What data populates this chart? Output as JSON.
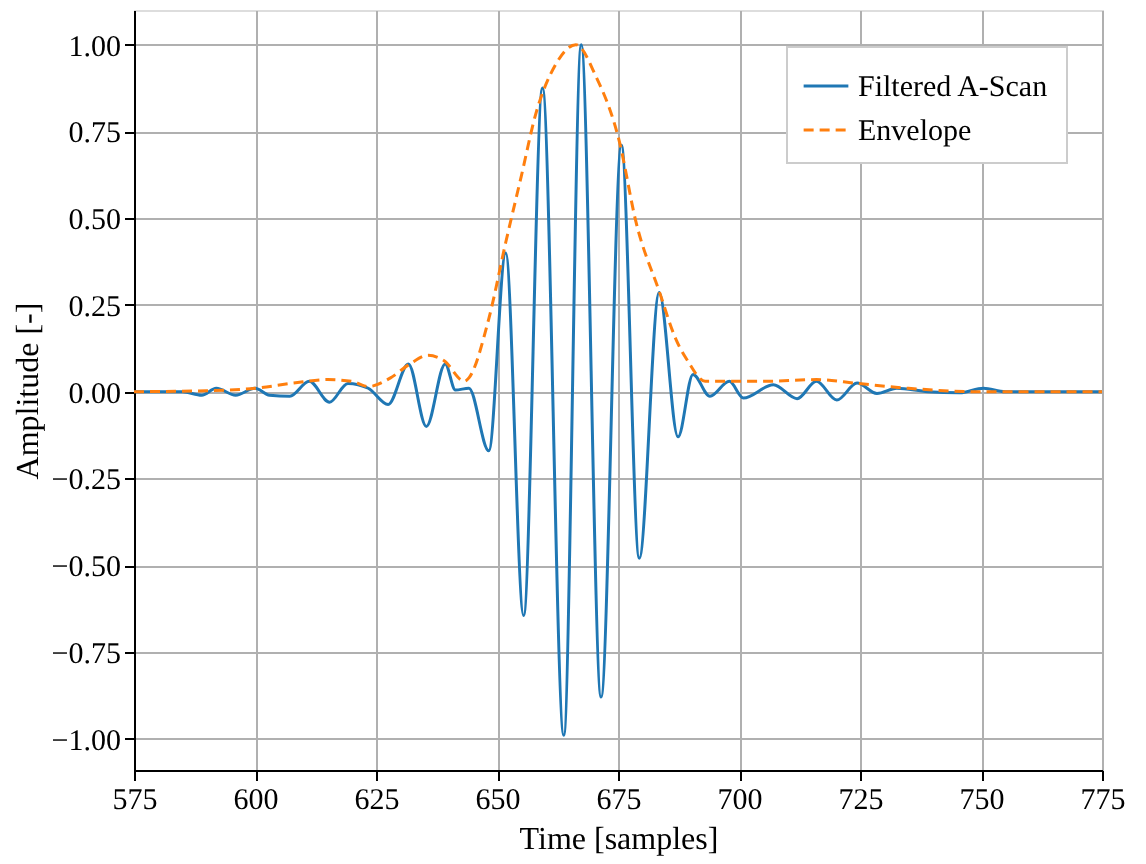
{
  "chart_data": {
    "type": "line",
    "xlabel": "Time [samples]",
    "ylabel": "Amplitude [-]",
    "xlim": [
      575,
      775
    ],
    "xticks": [
      575,
      600,
      625,
      650,
      675,
      700,
      725,
      750,
      775
    ],
    "ylim": [
      -1.09,
      1.1
    ],
    "yticks": [
      {
        "value": -1,
        "label": "−1.00"
      },
      {
        "value": -0.75,
        "label": "−0.75"
      },
      {
        "value": -0.5,
        "label": "−0.50"
      },
      {
        "value": -0.25,
        "label": "−0.25"
      },
      {
        "value": 0,
        "label": "0.00"
      },
      {
        "value": 0.25,
        "label": "0.25"
      },
      {
        "value": 0.5,
        "label": "0.50"
      },
      {
        "value": 0.75,
        "label": "0.75"
      },
      {
        "value": 1,
        "label": "1.00"
      }
    ],
    "grid": true,
    "legend": "top right",
    "series": [
      {
        "name": "Filtered A-Scan",
        "color": "#1f77b4",
        "line_style": "solid",
        "x": [
          575,
          585,
          589,
          592,
          596,
          600,
          603,
          607.2,
          611.2,
          615.4,
          619.2,
          623.4,
          627.5,
          631.7,
          635.4,
          639.3,
          641.4,
          644.2,
          648.3,
          651.8,
          655.5,
          659.4,
          663.8,
          667.4,
          671.5,
          675.7,
          679.4,
          683.5,
          687.4,
          690.5,
          694,
          698,
          700.9,
          707.1,
          712,
          716,
          720.2,
          724.4,
          728.5,
          732.6,
          739,
          745.6,
          750.5,
          755,
          775
        ],
        "values": [
          0,
          0,
          -0.01,
          0.01,
          -0.01,
          0.01,
          -0.01,
          -0.013,
          0.03,
          -0.03,
          0.024,
          0.01,
          -0.037,
          0.08,
          -0.1,
          0.08,
          0.005,
          0.01,
          -0.17,
          0.4,
          -0.645,
          0.875,
          -0.99,
          1.0,
          -0.88,
          0.71,
          -0.48,
          0.286,
          -0.13,
          0.05,
          -0.013,
          0.03,
          -0.018,
          0.02,
          -0.02,
          0.03,
          -0.024,
          0.025,
          -0.005,
          0.01,
          0,
          -0.003,
          0.01,
          0,
          0
        ]
      },
      {
        "name": "Envelope",
        "color": "#ff7f0e",
        "line_style": "dashed",
        "x": [
          575,
          590,
          600,
          608,
          615,
          620,
          623.4,
          628,
          632,
          635.8,
          639,
          643.3,
          644.2,
          648.3,
          651.8,
          655,
          658,
          662,
          666.3,
          670.4,
          675.3,
          678.7,
          683.5,
          687,
          689.8,
          691.2,
          693,
          696.7,
          705,
          716,
          724.4,
          735,
          749,
          775
        ],
        "values": [
          0,
          0.003,
          0.01,
          0.025,
          0.035,
          0.03,
          0.015,
          0.04,
          0.08,
          0.105,
          0.09,
          0.03,
          0.04,
          0.21,
          0.43,
          0.62,
          0.8,
          0.94,
          1.0,
          0.91,
          0.72,
          0.49,
          0.29,
          0.15,
          0.08,
          0.05,
          0.03,
          0.03,
          0.03,
          0.035,
          0.024,
          0.01,
          0.0,
          0
        ]
      }
    ]
  }
}
